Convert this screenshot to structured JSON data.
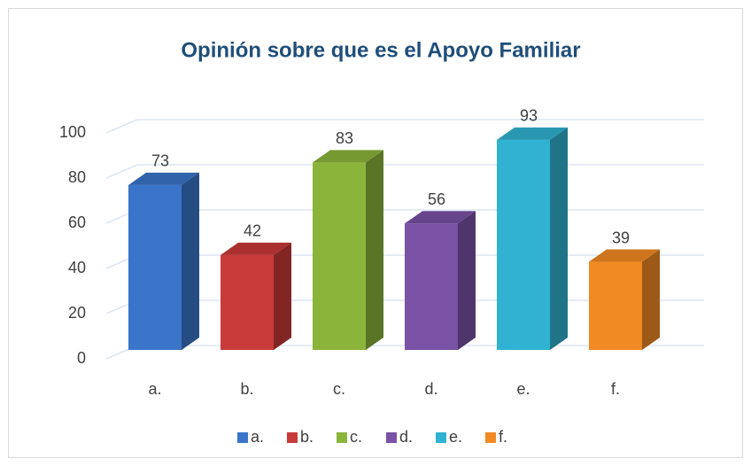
{
  "chart_data": {
    "type": "bar3d",
    "title": "Opinión sobre que es el Apoyo Familiar",
    "categories": [
      "a.",
      "b.",
      "c.",
      "d.",
      "e.",
      "f."
    ],
    "values": [
      73,
      42,
      83,
      56,
      93,
      39
    ],
    "colors": [
      "#3a75c9",
      "#c93a3a",
      "#8bb43b",
      "#7a52a6",
      "#31b2d2",
      "#f28a24"
    ],
    "ylim": [
      0,
      100
    ],
    "yticks": [
      0,
      20,
      40,
      60,
      80,
      100
    ],
    "grid": true,
    "legend": "bottom"
  }
}
